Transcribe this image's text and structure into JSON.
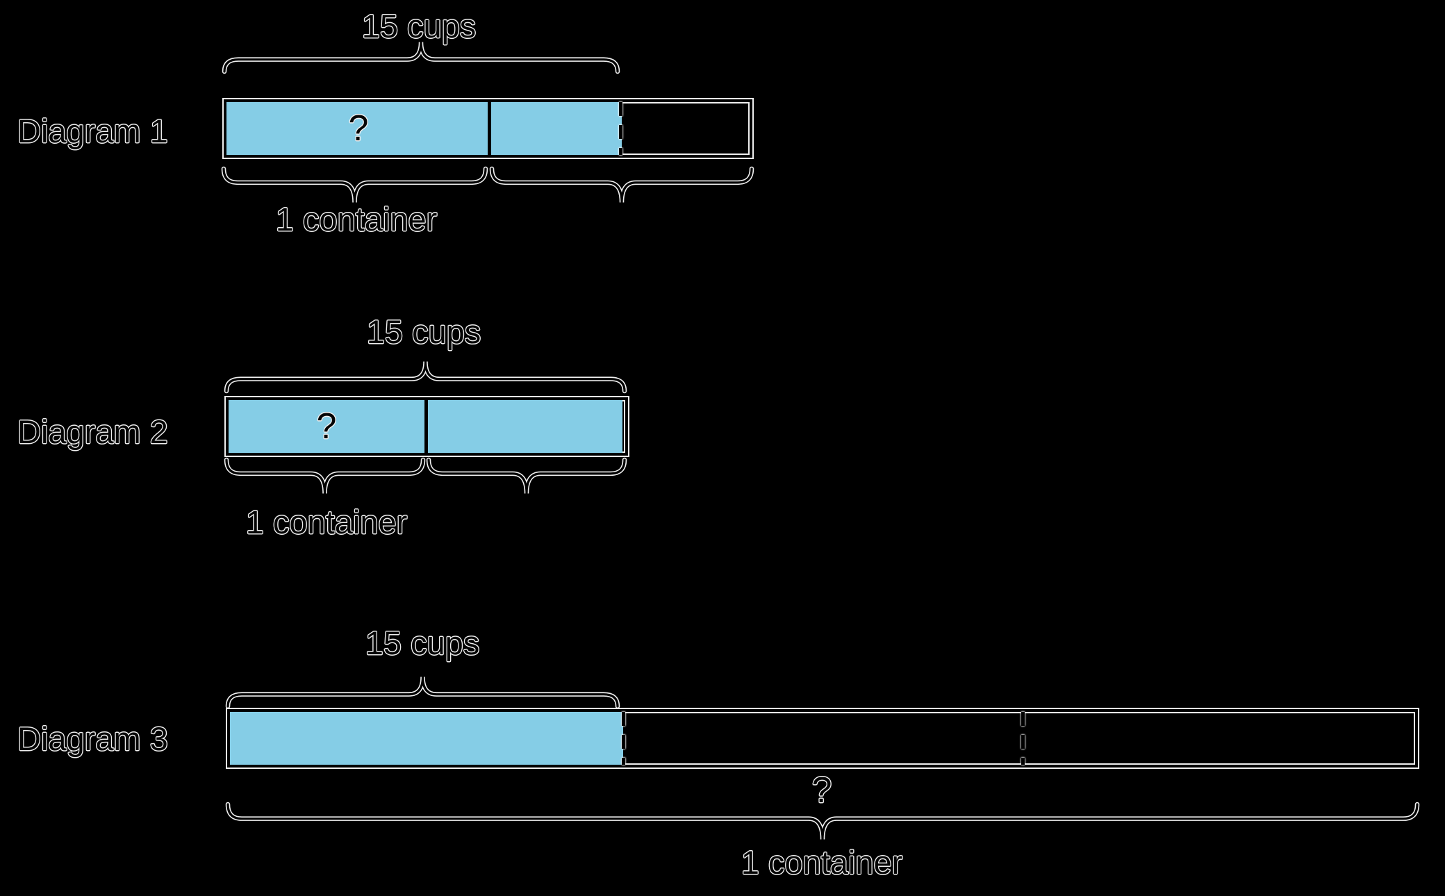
{
  "colors": {
    "background": "#000000",
    "bar_fill": "#85CDE6",
    "stroke": "#000000",
    "halo": "#EFEFEF"
  },
  "diagrams": [
    {
      "name": "Diagram 1",
      "amount_label": "15 cups",
      "unknown_label": "?",
      "container_label": "1 container",
      "structure": "bar of 2 containers; shaded 1.5 containers = 15 cups; ? = cups in 1 container"
    },
    {
      "name": "Diagram 2",
      "amount_label": "15 cups",
      "unknown_label": "?",
      "container_label": "1 container",
      "structure": "bar of 2 containers fully shaded = 15 cups; ? = cups in 1 container"
    },
    {
      "name": "Diagram 3",
      "amount_label": "15 cups",
      "unknown_label": "?",
      "container_label": "1 container",
      "structure": "bar = 1 container in 3 equal parts; first part shaded = 15 cups; ? = cups in whole container"
    }
  ]
}
